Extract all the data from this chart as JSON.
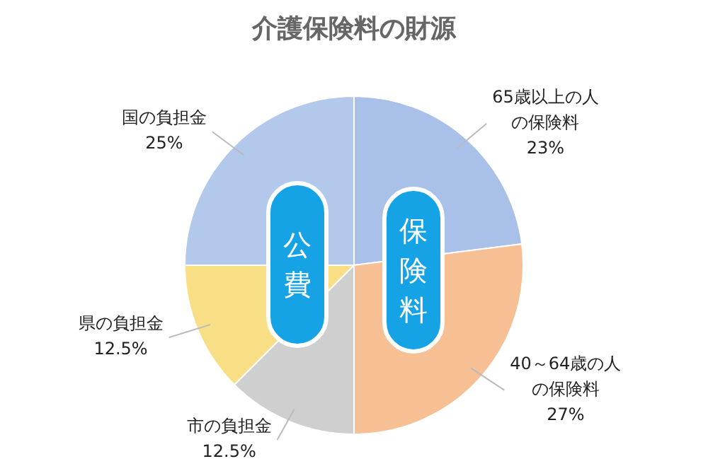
{
  "chart_data": {
    "type": "pie",
    "title": "介護保険料の財源",
    "categories": [
      "65歳以上の人の保険料",
      "40～64歳の人の保険料",
      "市の負担金",
      "県の負担金",
      "国の負担金"
    ],
    "values": [
      23,
      27,
      12.5,
      12.5,
      25
    ],
    "value_labels": [
      "23%",
      "27%",
      "12.5%",
      "12.5%",
      "25%"
    ],
    "colors": [
      "#a9c1e8",
      "#f6bf94",
      "#cfcfcf",
      "#f8df85",
      "#b3c9ec"
    ],
    "annotations": [
      "公費",
      "保険料"
    ],
    "legend": false
  }
}
